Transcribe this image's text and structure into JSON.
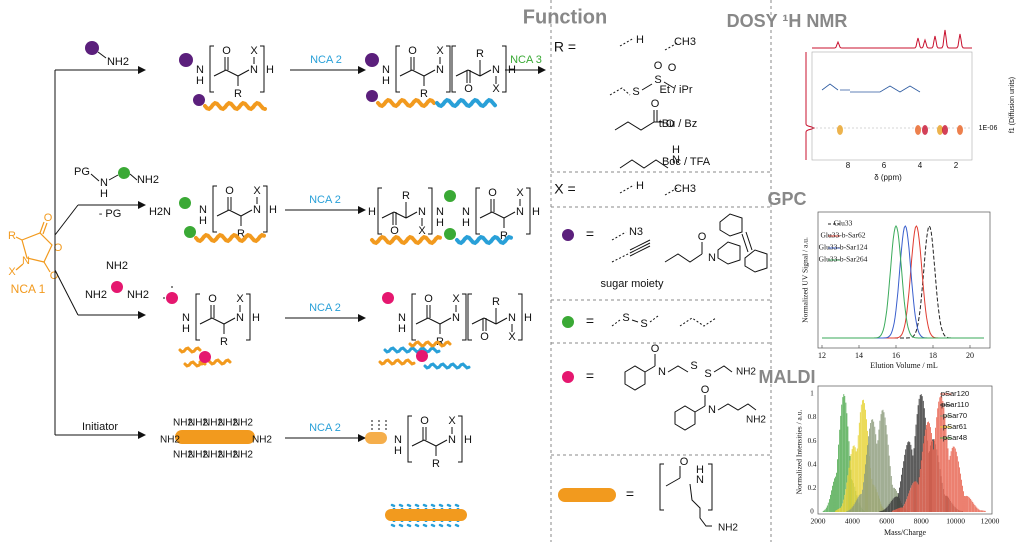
{
  "scheme": {
    "nca1": "NCA 1",
    "steps": [
      "NCA 2",
      "NCA 2",
      "NCA 2",
      "NCA 2"
    ],
    "step3": "NCA 3",
    "protecting_group": "PG",
    "deprotection": "- PG",
    "initiator": "Initiator",
    "symbols": {
      "nitrogen": "N",
      "hydrogen": "H",
      "oxygen": "O",
      "side_chain": "R",
      "n_substituent": "X",
      "amine": "NH2",
      "amine_left": "H2N",
      "sulfur": "S"
    }
  },
  "function": {
    "title": "Function",
    "r_label": "R =",
    "r_groups": [
      "H",
      "CH3",
      "Et / iPr",
      "tBu / Bz",
      "Boc / TFA"
    ],
    "x_label": "X =",
    "x_groups": [
      "H",
      "CH3"
    ],
    "equals": "=",
    "azide": "N3",
    "sugar": "sugar moiety"
  },
  "nmr": {
    "title": "DOSY ¹H NMR",
    "x_label": "δ (ppm)",
    "x_ticks": [
      "8",
      "6",
      "4",
      "2"
    ],
    "y_label": "f1 (Diffusion units)",
    "y_tick": "1E-06"
  },
  "gpc": {
    "title": "GPC",
    "legend": [
      "Glu33",
      "Glu33-b-Sar62",
      "Glu33-b-Sar124",
      "Glu33-b-Sar264"
    ],
    "x_label": "Elution Volume / mL",
    "y_label": "Normalized UV Signal / a.u.",
    "x_ticks": [
      "12",
      "14",
      "16",
      "18",
      "20"
    ]
  },
  "maldi": {
    "title": "MALDI",
    "legend": [
      "pSar120",
      "pSar110",
      "pSar70",
      "pSar61",
      "pSar48"
    ],
    "x_label": "Mass/Charge",
    "y_label": "Normalized Intensities / a.u.",
    "x_ticks": [
      "2000",
      "4000",
      "6000",
      "8000",
      "10000",
      "12000"
    ],
    "y_ticks": [
      "0",
      "0.2",
      "0.4",
      "0.6",
      "0.8",
      "1"
    ]
  }
}
